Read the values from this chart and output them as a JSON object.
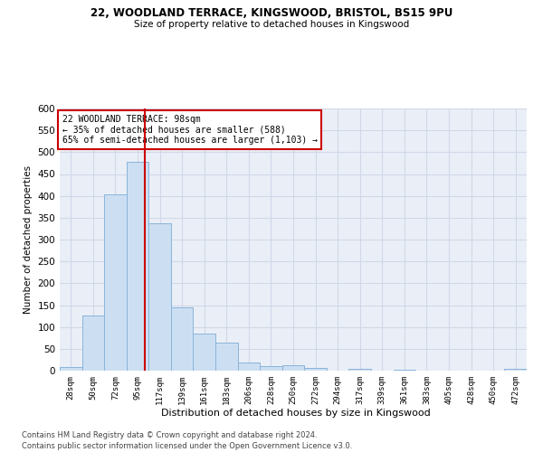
{
  "title1": "22, WOODLAND TERRACE, KINGSWOOD, BRISTOL, BS15 9PU",
  "title2": "Size of property relative to detached houses in Kingswood",
  "xlabel": "Distribution of detached houses by size in Kingswood",
  "ylabel": "Number of detached properties",
  "footer1": "Contains HM Land Registry data © Crown copyright and database right 2024.",
  "footer2": "Contains public sector information licensed under the Open Government Licence v3.0.",
  "bin_labels": [
    "28sqm",
    "50sqm",
    "72sqm",
    "95sqm",
    "117sqm",
    "139sqm",
    "161sqm",
    "183sqm",
    "206sqm",
    "228sqm",
    "250sqm",
    "272sqm",
    "294sqm",
    "317sqm",
    "339sqm",
    "361sqm",
    "383sqm",
    "405sqm",
    "428sqm",
    "450sqm",
    "472sqm"
  ],
  "bar_values": [
    8,
    127,
    403,
    477,
    338,
    145,
    85,
    65,
    18,
    11,
    13,
    6,
    0,
    4,
    0,
    3,
    0,
    0,
    0,
    0,
    4
  ],
  "bar_color": "#ccdff2",
  "bar_edge_color": "#89b4d9",
  "vline_bin_index": 3.32,
  "vline_color": "#cc0000",
  "annotation_text": "22 WOODLAND TERRACE: 98sqm\n← 35% of detached houses are smaller (588)\n65% of semi-detached houses are larger (1,103) →",
  "annotation_box_color": "#ffffff",
  "annotation_box_edge": "#cc0000",
  "ylim": [
    0,
    600
  ],
  "yticks": [
    0,
    50,
    100,
    150,
    200,
    250,
    300,
    350,
    400,
    450,
    500,
    550,
    600
  ],
  "grid_color": "#d0d8e8",
  "bg_color": "#eaeff7"
}
